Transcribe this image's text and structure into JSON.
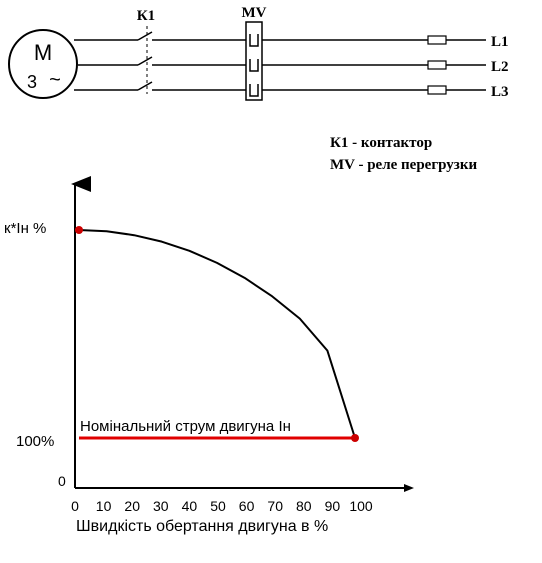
{
  "circuit": {
    "motor_symbol": "M",
    "motor_phase": "3",
    "motor_ac": "~",
    "contactor_label": "К1",
    "relay_label": "MV",
    "lines": [
      "L1",
      "L2",
      "L3"
    ],
    "legend": [
      "К1 - контактор",
      "MV - реле перегрузки"
    ]
  },
  "chart_data": {
    "type": "line",
    "ylabel": "к*Ін %",
    "xlabel": "Швидкість обертання двигуна в %",
    "x_ticks": [
      "0",
      "10",
      "20",
      "30",
      "40",
      "50",
      "60",
      "70",
      "80",
      "90",
      "100"
    ],
    "y_ticks": [
      "0",
      "100%"
    ],
    "xlim": [
      0,
      100
    ],
    "series": [
      {
        "x": [
          0,
          10,
          20,
          30,
          40,
          50,
          60,
          70,
          80,
          90,
          100
        ],
        "y": [
          100,
          99.4,
          97.5,
          94.4,
          90,
          84.2,
          77,
          68.1,
          57.4,
          42,
          0
        ],
        "color": "#000000"
      },
      {
        "x": [
          0,
          100
        ],
        "y": [
          0,
          0
        ],
        "color": "#e00000"
      }
    ],
    "markers": [
      {
        "x": 0,
        "y": 100,
        "color": "#cc0000"
      },
      {
        "x": 100,
        "y": 0,
        "color": "#cc0000"
      }
    ],
    "annotations": [
      "Номінальний струм двигуна Ін"
    ]
  }
}
